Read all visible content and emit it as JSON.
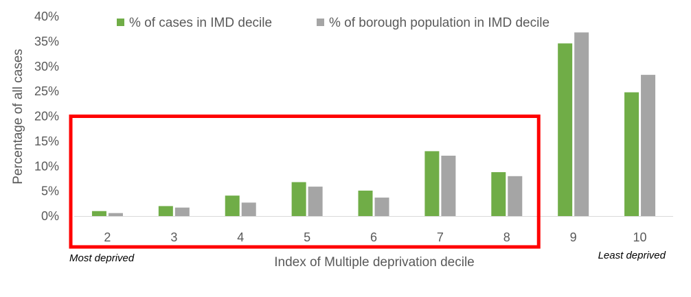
{
  "chart_data": {
    "type": "bar",
    "title": "",
    "xlabel": "Index of Multiple deprivation decile",
    "ylabel": "Percentage of all cases",
    "categories": [
      "2",
      "3",
      "4",
      "5",
      "6",
      "7",
      "8",
      "9",
      "10"
    ],
    "series": [
      {
        "name": "% of cases in IMD decile",
        "color": "#70ad47",
        "values": [
          1.0,
          2.0,
          4.1,
          6.8,
          5.1,
          13.0,
          8.8,
          34.6,
          24.8
        ]
      },
      {
        "name": "% of borough population in IMD decile",
        "color": "#a5a5a5",
        "values": [
          0.6,
          1.7,
          2.7,
          5.9,
          3.7,
          12.1,
          8.0,
          36.8,
          28.3
        ]
      }
    ],
    "ylim": [
      0,
      40
    ],
    "yticks": [
      0,
      5,
      10,
      15,
      20,
      25,
      30,
      35,
      40
    ],
    "ytick_labels": [
      "0%",
      "5%",
      "10%",
      "15%",
      "20%",
      "25%",
      "30%",
      "35%",
      "40%"
    ],
    "grid": false,
    "legend_position": "top",
    "annotations": {
      "left_note": "Most deprived",
      "right_note": "Least deprived",
      "highlight_box": {
        "from_category": "2",
        "to_category": "8",
        "color": "#ff0000"
      }
    }
  }
}
